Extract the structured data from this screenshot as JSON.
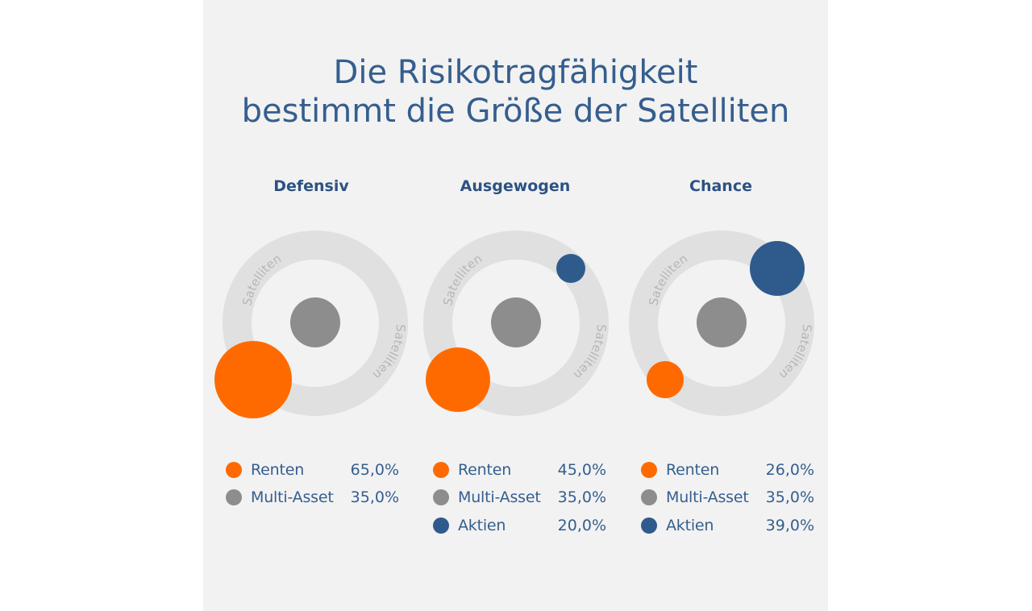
{
  "title": {
    "line1": "Die Risikotragfähigkeit",
    "line2": "bestimmt die Größe der Satelliten"
  },
  "ring_label": "Satelliten",
  "colors": {
    "renten": "#ff6a00",
    "multi_asset": "#8c8d8c",
    "aktien": "#2f5b8c",
    "ring": "#e0e0e0",
    "ring_text": "#b6b6b6",
    "background": "#f2f2f2"
  },
  "portfolios": [
    {
      "name": "Defensiv",
      "items": [
        {
          "label": "Renten",
          "value": "65,0%",
          "color": "#ff6a00"
        },
        {
          "label": "Multi-Asset",
          "value": "35,0%",
          "color": "#8c8d8c"
        }
      ]
    },
    {
      "name": "Ausgewogen",
      "items": [
        {
          "label": "Renten",
          "value": "45,0%",
          "color": "#ff6a00"
        },
        {
          "label": "Multi-Asset",
          "value": "35,0%",
          "color": "#8c8d8c"
        },
        {
          "label": "Aktien",
          "value": "20,0%",
          "color": "#2f5b8c"
        }
      ]
    },
    {
      "name": "Chance",
      "items": [
        {
          "label": "Renten",
          "value": "26,0%",
          "color": "#ff6a00"
        },
        {
          "label": "Multi-Asset",
          "value": "35,0%",
          "color": "#8c8d8c"
        },
        {
          "label": "Aktien",
          "value": "39,0%",
          "color": "#2f5b8c"
        }
      ]
    }
  ]
}
